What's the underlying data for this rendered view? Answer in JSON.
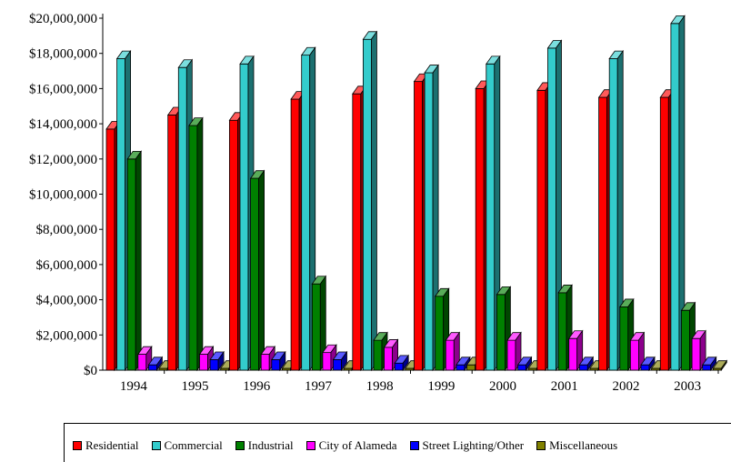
{
  "chart_data": {
    "type": "bar",
    "categories": [
      "1994",
      "1995",
      "1996",
      "1997",
      "1998",
      "1999",
      "2000",
      "2001",
      "2002",
      "2003"
    ],
    "series": [
      {
        "name": "Residential",
        "color": "#ff0000",
        "values": [
          13700000,
          14500000,
          14200000,
          15400000,
          15700000,
          16400000,
          16000000,
          15900000,
          15500000,
          15500000
        ]
      },
      {
        "name": "Commercial",
        "color": "#33cccc",
        "values": [
          17700000,
          17200000,
          17400000,
          17900000,
          18800000,
          16900000,
          17400000,
          18300000,
          17700000,
          19700000
        ]
      },
      {
        "name": "Industrial",
        "color": "#008000",
        "values": [
          12000000,
          13900000,
          10900000,
          4900000,
          1700000,
          4200000,
          4300000,
          4400000,
          3600000,
          3400000
        ]
      },
      {
        "name": "City of Alameda",
        "color": "#ff00ff",
        "values": [
          900000,
          900000,
          900000,
          1000000,
          1300000,
          1700000,
          1700000,
          1800000,
          1700000,
          1800000
        ]
      },
      {
        "name": "Street Lighting/Other",
        "color": "#0000ff",
        "values": [
          300000,
          600000,
          600000,
          600000,
          400000,
          300000,
          300000,
          300000,
          300000,
          300000
        ]
      },
      {
        "name": "Miscellaneous",
        "color": "#808000",
        "values": [
          100000,
          100000,
          100000,
          100000,
          100000,
          300000,
          100000,
          100000,
          100000,
          100000
        ]
      }
    ],
    "y_ticks": [
      "$0",
      "$2,000,000",
      "$4,000,000",
      "$6,000,000",
      "$8,000,000",
      "$10,000,000",
      "$12,000,000",
      "$14,000,000",
      "$16,000,000",
      "$18,000,000",
      "$20,000,000"
    ],
    "ylim": [
      0,
      20000000
    ],
    "title": "",
    "xlabel": "",
    "ylabel": "",
    "grid": false,
    "legend_position": "bottom"
  }
}
